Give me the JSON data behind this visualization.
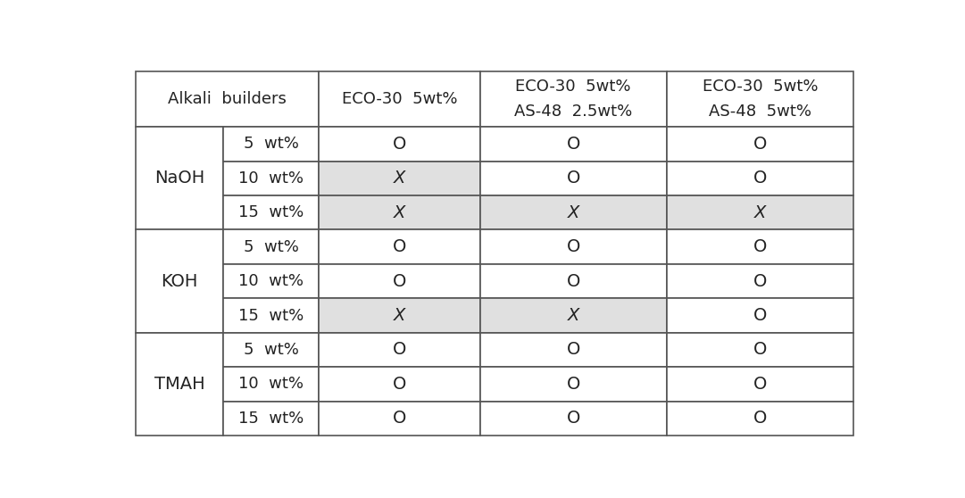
{
  "col_headers": [
    "Alkali  builders",
    "ECO-30 5wt%",
    "ECO-30 5wt%\nAS-48 2.5wt%",
    "ECO-30 5wt%\nAS-48 5wt%"
  ],
  "row_groups": [
    {
      "group": "NaOH",
      "rows": [
        {
          "conc": "5  wt%",
          "c1": "O",
          "c2": "O",
          "c3": "O",
          "bg1": "#ffffff",
          "bg2": "#ffffff",
          "bg3": "#ffffff"
        },
        {
          "conc": "10  wt%",
          "c1": "X",
          "c2": "O",
          "c3": "O",
          "bg1": "#e0e0e0",
          "bg2": "#ffffff",
          "bg3": "#ffffff"
        },
        {
          "conc": "15  wt%",
          "c1": "X",
          "c2": "X",
          "c3": "X",
          "bg1": "#e0e0e0",
          "bg2": "#e0e0e0",
          "bg3": "#e0e0e0"
        }
      ]
    },
    {
      "group": "KOH",
      "rows": [
        {
          "conc": "5  wt%",
          "c1": "O",
          "c2": "O",
          "c3": "O",
          "bg1": "#ffffff",
          "bg2": "#ffffff",
          "bg3": "#ffffff"
        },
        {
          "conc": "10  wt%",
          "c1": "O",
          "c2": "O",
          "c3": "O",
          "bg1": "#ffffff",
          "bg2": "#ffffff",
          "bg3": "#ffffff"
        },
        {
          "conc": "15  wt%",
          "c1": "X",
          "c2": "X",
          "c3": "O",
          "bg1": "#e0e0e0",
          "bg2": "#e0e0e0",
          "bg3": "#ffffff"
        }
      ]
    },
    {
      "group": "TMAH",
      "rows": [
        {
          "conc": "5  wt%",
          "c1": "O",
          "c2": "O",
          "c3": "O",
          "bg1": "#ffffff",
          "bg2": "#ffffff",
          "bg3": "#ffffff"
        },
        {
          "conc": "10  wt%",
          "c1": "O",
          "c2": "O",
          "c3": "O",
          "bg1": "#ffffff",
          "bg2": "#ffffff",
          "bg3": "#ffffff"
        },
        {
          "conc": "15  wt%",
          "c1": "O",
          "c2": "O",
          "c3": "O",
          "bg1": "#ffffff",
          "bg2": "#ffffff",
          "bg3": "#ffffff"
        }
      ]
    }
  ],
  "border_color": "#555555",
  "text_color": "#222222",
  "font_size_header": 13,
  "font_size_cell": 13,
  "font_size_group": 14
}
